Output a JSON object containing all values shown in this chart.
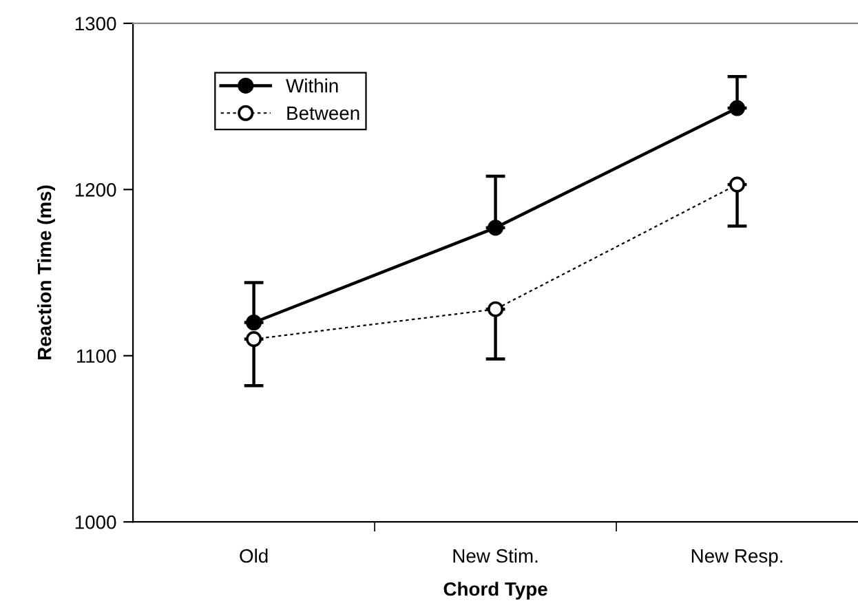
{
  "chart_data": {
    "type": "line",
    "xlabel": "Chord Type",
    "ylabel": "Reaction Time (ms)",
    "categories": [
      "Old",
      "New Stim.",
      "New Resp."
    ],
    "series": [
      {
        "name": "Within",
        "color": "#000000",
        "values": [
          1120,
          1177,
          1249
        ],
        "errors": [
          [
            1120,
            1144
          ],
          [
            1177,
            1208
          ],
          [
            1249,
            1268
          ]
        ],
        "marker": "circle",
        "line_style": "solid"
      },
      {
        "name": "Between",
        "color": "#000000",
        "values": [
          1110,
          1128,
          1203
        ],
        "errors": [
          [
            1082,
            1110
          ],
          [
            1098,
            1128
          ],
          [
            1178,
            1203
          ]
        ],
        "marker": "circle",
        "line_style": "dotted"
      }
    ],
    "ylim": [
      1000,
      1300
    ],
    "yticks": [
      1000,
      1100,
      1200,
      1300
    ],
    "grid": false,
    "legend": "top left"
  }
}
